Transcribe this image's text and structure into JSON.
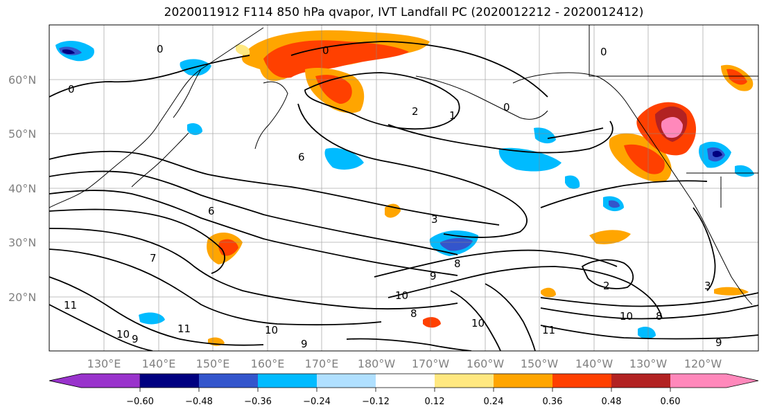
{
  "title": "2020011912 F114 850 hPa qvapor, IVT Landfall PC (2020012212 - 2020012412)",
  "map": {
    "lat_labels": [
      "60°N",
      "50°N",
      "40°N",
      "30°N",
      "20°N"
    ],
    "lon_labels": [
      "130°E",
      "140°E",
      "150°E",
      "160°E",
      "170°E",
      "180°W",
      "170°W",
      "160°W",
      "150°W",
      "140°W",
      "130°W",
      "120°W"
    ],
    "contour_labels": [
      "0",
      "0",
      "0",
      "0",
      "0",
      "1",
      "2",
      "2",
      "3",
      "3",
      "6",
      "7",
      "8",
      "8",
      "8",
      "9",
      "9",
      "9",
      "9",
      "10",
      "10",
      "10",
      "10",
      "10",
      "11",
      "11",
      "11",
      "6"
    ]
  },
  "colorbar": {
    "tick_labels": [
      "−0.60",
      "−0.48",
      "−0.36",
      "−0.24",
      "−0.12",
      "0.12",
      "0.24",
      "0.36",
      "0.48",
      "0.60"
    ],
    "colors": [
      "#9933cc",
      "#000080",
      "#3355cc",
      "#00bbff",
      "#b0e0ff",
      "#ffffff",
      "#ffe880",
      "#ffa500",
      "#ff4000",
      "#b22222",
      "#ff88bb"
    ]
  }
}
